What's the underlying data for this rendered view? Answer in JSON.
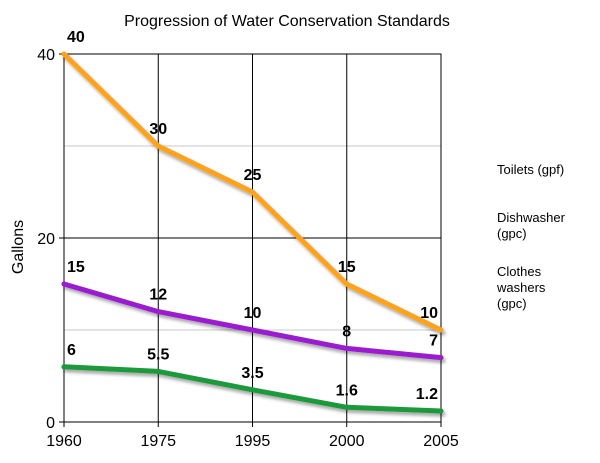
{
  "chart_data": {
    "type": "line",
    "title": "Progression of Water Conservation Standards",
    "xlabel": "",
    "ylabel": "Gallons",
    "x": [
      "1960",
      "1975",
      "1995",
      "2000",
      "2005"
    ],
    "ylim": [
      0,
      40
    ],
    "y_ticks": [
      "0",
      "20",
      "40"
    ],
    "grid": true,
    "legend_position": "right",
    "series": [
      {
        "name": "Toilets (gpf)",
        "legend_lines": [
          "Toilets (gpf)"
        ],
        "color": "#1a9a3a",
        "values": [
          6,
          5.5,
          3.5,
          1.6,
          1.2
        ],
        "labels": [
          "6",
          "5.5",
          "3.5",
          "1.6",
          "1.2"
        ]
      },
      {
        "name": "Dishwasher (gpc)",
        "legend_lines": [
          "Dishwasher",
          "(gpc)"
        ],
        "color": "#9b1fd0",
        "values": [
          15,
          12,
          10,
          8,
          7
        ],
        "labels": [
          "15",
          "12",
          "10",
          "8",
          "7"
        ]
      },
      {
        "name": "Clothes washers (gpc)",
        "legend_lines": [
          "Clothes",
          "washers",
          "(gpc)"
        ],
        "color": "#ffa31a",
        "values": [
          40,
          30,
          25,
          15,
          10
        ],
        "labels": [
          "40",
          "30",
          "25",
          "15",
          "10"
        ]
      }
    ]
  }
}
